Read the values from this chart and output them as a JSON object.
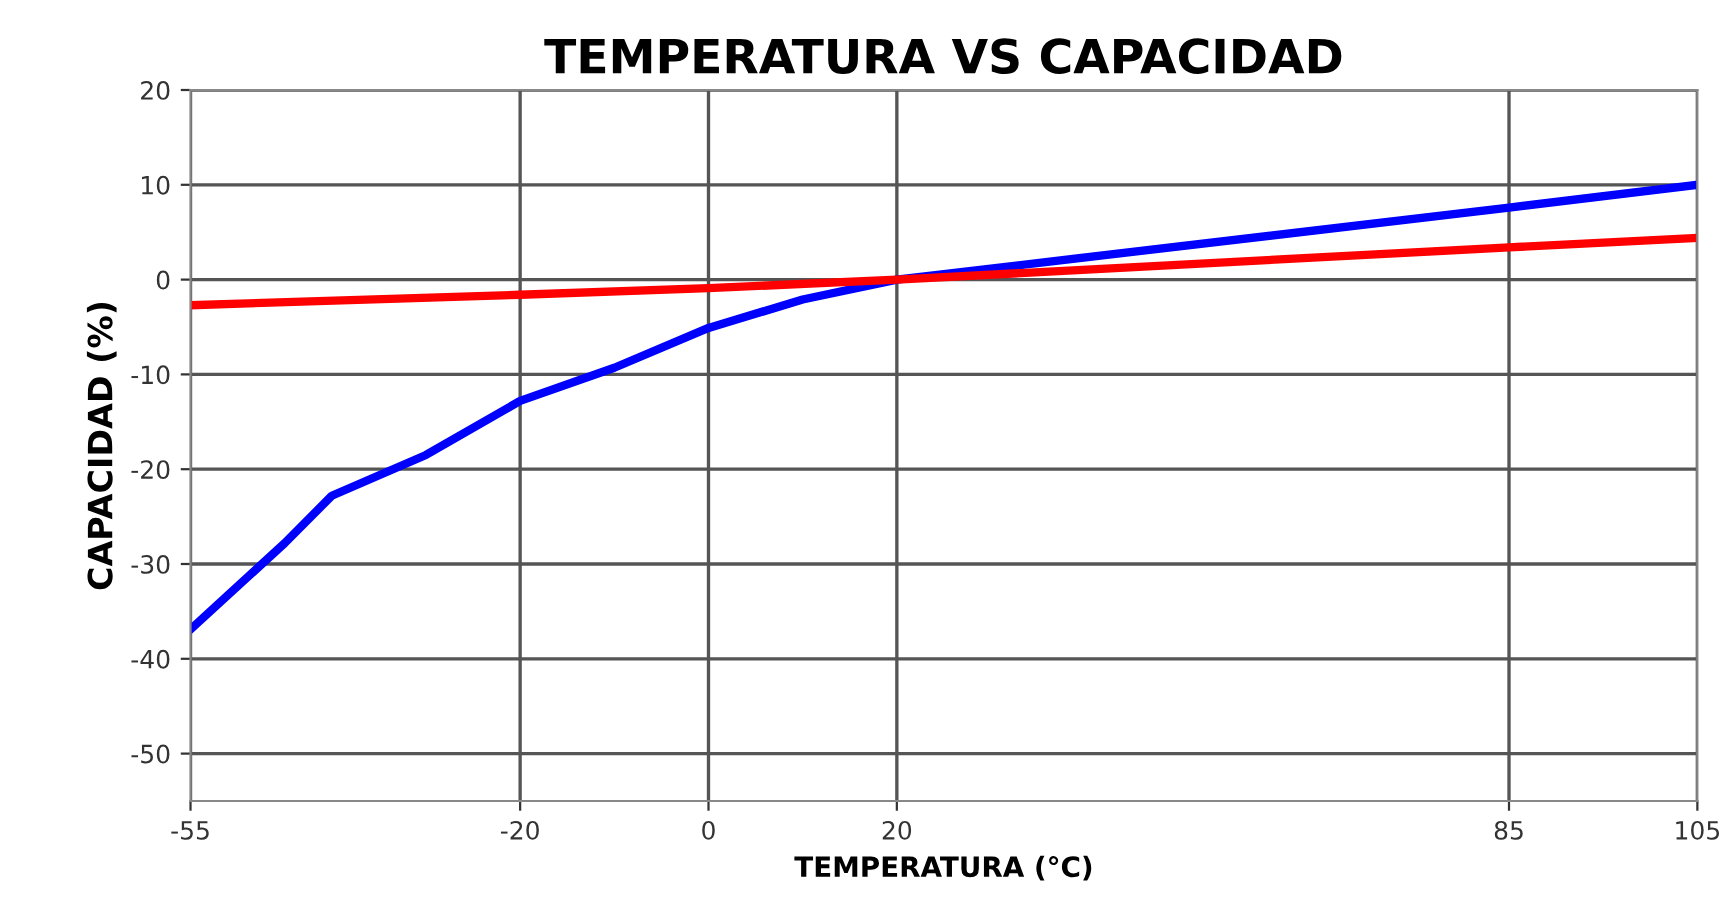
{
  "chart_data": {
    "type": "line",
    "title": "TEMPERATURA VS CAPACIDAD",
    "xlabel": "TEMPERATURA (°C)",
    "ylabel": "CAPACIDAD (%)",
    "xlim": [
      -55,
      105
    ],
    "xticks": [
      -55,
      -20,
      0,
      20,
      85,
      105
    ],
    "ylim": [
      -55,
      20
    ],
    "yticks": [
      -50,
      -40,
      -30,
      -20,
      -10,
      0,
      10,
      20
    ],
    "grid": true,
    "legend": false,
    "marker": "none",
    "line_style": "solid",
    "series": [
      {
        "color": "#0000ff",
        "x": [
          -55,
          -45,
          -40,
          -30,
          -20,
          -10,
          0,
          10,
          20,
          85,
          105
        ],
        "values": [
          -36.9,
          -27.8,
          -22.8,
          -18.5,
          -12.8,
          -9.3,
          -5.1,
          -2.1,
          0,
          7.6,
          10
        ]
      },
      {
        "color": "#ff0000",
        "x": [
          -55,
          -20,
          0,
          20,
          85,
          105
        ],
        "values": [
          -2.7,
          -1.6,
          -0.9,
          0,
          3.4,
          4.4
        ]
      }
    ]
  }
}
